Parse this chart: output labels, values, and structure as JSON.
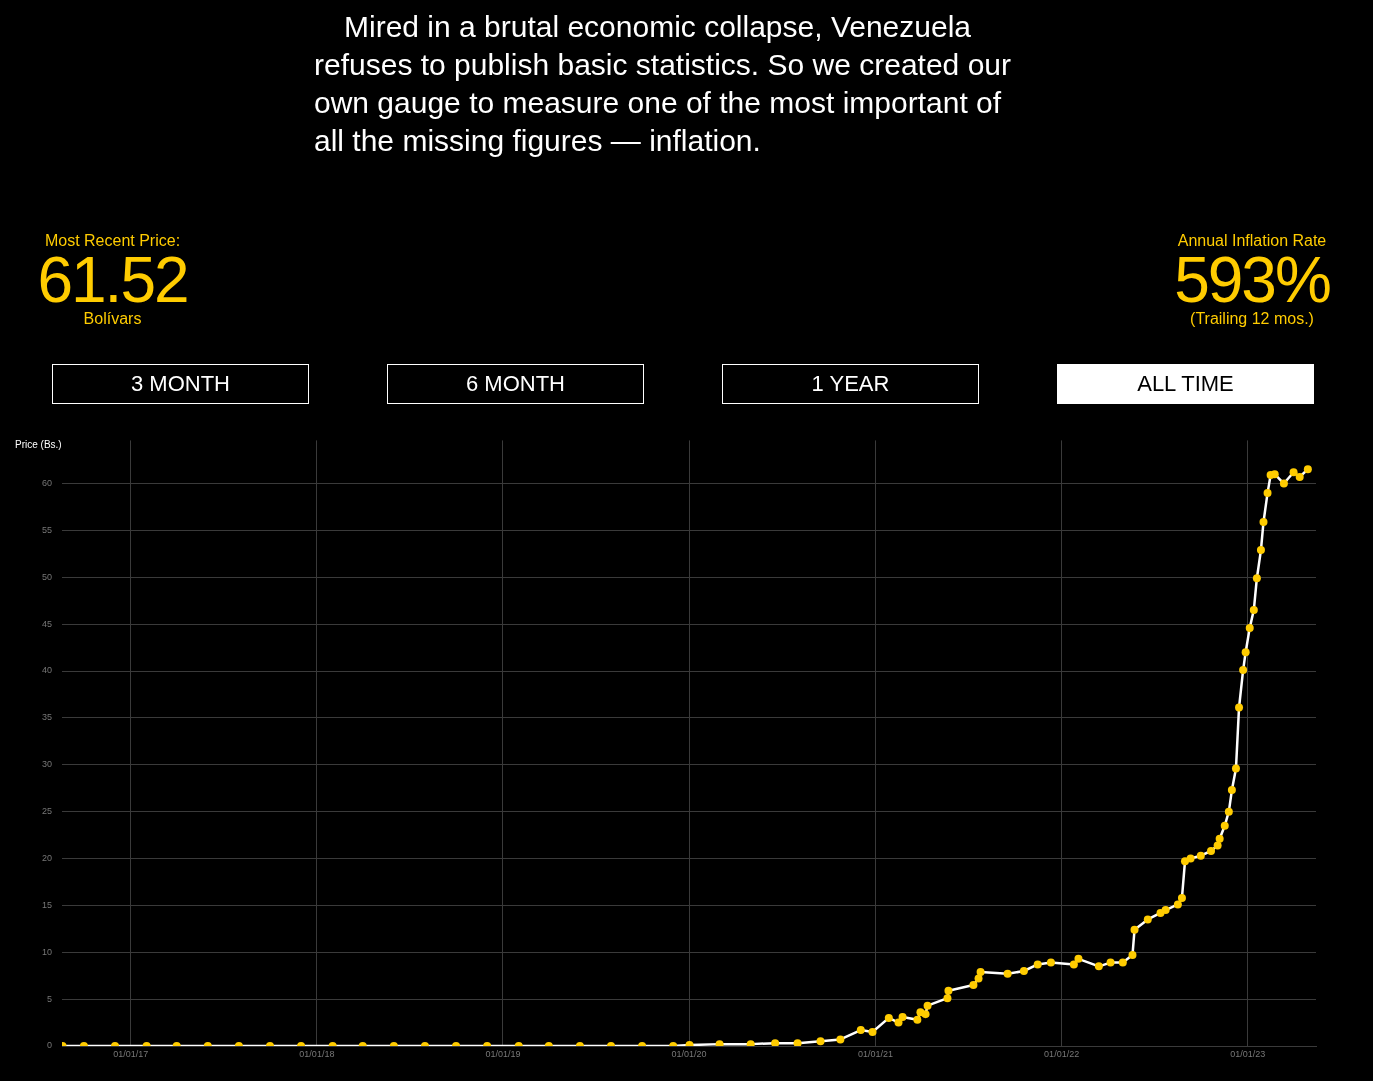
{
  "chart_data": {
    "type": "line",
    "title": "Mired in a brutal economic collapse, Venezuela refuses to publish basic statistics. So we created our own gauge to measure one of the most important of all the missing figures — inflation.",
    "ylabel": "Price (Bs.)",
    "annotations": [
      "Most Recent Price:",
      "61.52",
      "Bolívars",
      "Annual Inflation Rate",
      "593%",
      "(Trailing 12 mos.)",
      "3 MONTH",
      "6 MONTH",
      "1 YEAR",
      "ALL TIME"
    ],
    "xlim": [
      "2016-08-19",
      "2023-05-15"
    ],
    "xticks": [
      {
        "value": "2017-01-01",
        "label": "01/01/17"
      },
      {
        "value": "2018-01-01",
        "label": "01/01/18"
      },
      {
        "value": "2019-01-01",
        "label": "01/01/19"
      },
      {
        "value": "2020-01-01",
        "label": "01/01/20"
      },
      {
        "value": "2021-01-01",
        "label": "01/01/21"
      },
      {
        "value": "2022-01-01",
        "label": "01/01/22"
      },
      {
        "value": "2023-01-01",
        "label": "01/01/23"
      }
    ],
    "ylim": [
      0,
      64.6
    ],
    "yticks": [
      0,
      5,
      10,
      15,
      20,
      25,
      30,
      35,
      40,
      45,
      50,
      55,
      60
    ],
    "grid": true,
    "legend": false,
    "marker": "circle",
    "line_style": "solid",
    "x": [
      "2016-08-20",
      "2016-10-01",
      "2016-12-01",
      "2017-02-01",
      "2017-04-01",
      "2017-06-01",
      "2017-08-01",
      "2017-10-01",
      "2017-12-01",
      "2018-02-01",
      "2018-04-01",
      "2018-06-01",
      "2018-08-01",
      "2018-10-01",
      "2018-12-01",
      "2019-02-01",
      "2019-04-01",
      "2019-06-01",
      "2019-08-01",
      "2019-10-01",
      "2019-12-01",
      "2020-01-02",
      "2020-03-01",
      "2020-05-01",
      "2020-06-18",
      "2020-08-01",
      "2020-09-15",
      "2020-10-24",
      "2020-12-03",
      "2020-12-26",
      "2021-01-27",
      "2021-02-15",
      "2021-02-23",
      "2021-03-24",
      "2021-03-30",
      "2021-04-09",
      "2021-04-13",
      "2021-05-22",
      "2021-05-24",
      "2021-07-12",
      "2021-07-22",
      "2021-07-26",
      "2021-09-17",
      "2021-10-19",
      "2021-11-15",
      "2021-12-11",
      "2022-01-25",
      "2022-02-03",
      "2022-03-15",
      "2022-04-07",
      "2022-05-01",
      "2022-05-20",
      "2022-05-24",
      "2022-06-19",
      "2022-07-14",
      "2022-07-24",
      "2022-08-17",
      "2022-08-25",
      "2022-08-31",
      "2022-09-11",
      "2022-10-01",
      "2022-10-21",
      "2022-11-03",
      "2022-11-07",
      "2022-11-17",
      "2022-11-25",
      "2022-12-01",
      "2022-12-09",
      "2022-12-15",
      "2022-12-23",
      "2022-12-28",
      "2023-01-05",
      "2023-01-13",
      "2023-01-19",
      "2023-01-27",
      "2023-02-01",
      "2023-02-09",
      "2023-02-15",
      "2023-02-23",
      "2023-03-13",
      "2023-04-01",
      "2023-04-13",
      "2023-04-29"
    ],
    "series": [
      {
        "color": "#ffcc00",
        "values": [
          0,
          0,
          0,
          0,
          0,
          0,
          0,
          0,
          0,
          0,
          0,
          0,
          0,
          0,
          0,
          0,
          0,
          0,
          0,
          0,
          0,
          0.1,
          0.2,
          0.2,
          0.3,
          0.3,
          0.5,
          0.7,
          1.7,
          1.5,
          3.0,
          2.5,
          3.1,
          2.8,
          3.6,
          3.4,
          4.3,
          5.1,
          5.9,
          6.5,
          7.2,
          7.9,
          7.7,
          8.0,
          8.7,
          8.9,
          8.7,
          9.3,
          8.5,
          8.9,
          8.9,
          9.7,
          12.4,
          13.5,
          14.2,
          14.5,
          15.1,
          15.8,
          19.7,
          20.0,
          20.3,
          20.8,
          21.4,
          22.1,
          23.5,
          25.0,
          27.3,
          29.6,
          36.1,
          40.1,
          42.0,
          44.6,
          46.5,
          49.9,
          52.9,
          55.9,
          59.0,
          60.9,
          61.0,
          60.0,
          61.2,
          60.7,
          61.52
        ]
      }
    ]
  }
}
